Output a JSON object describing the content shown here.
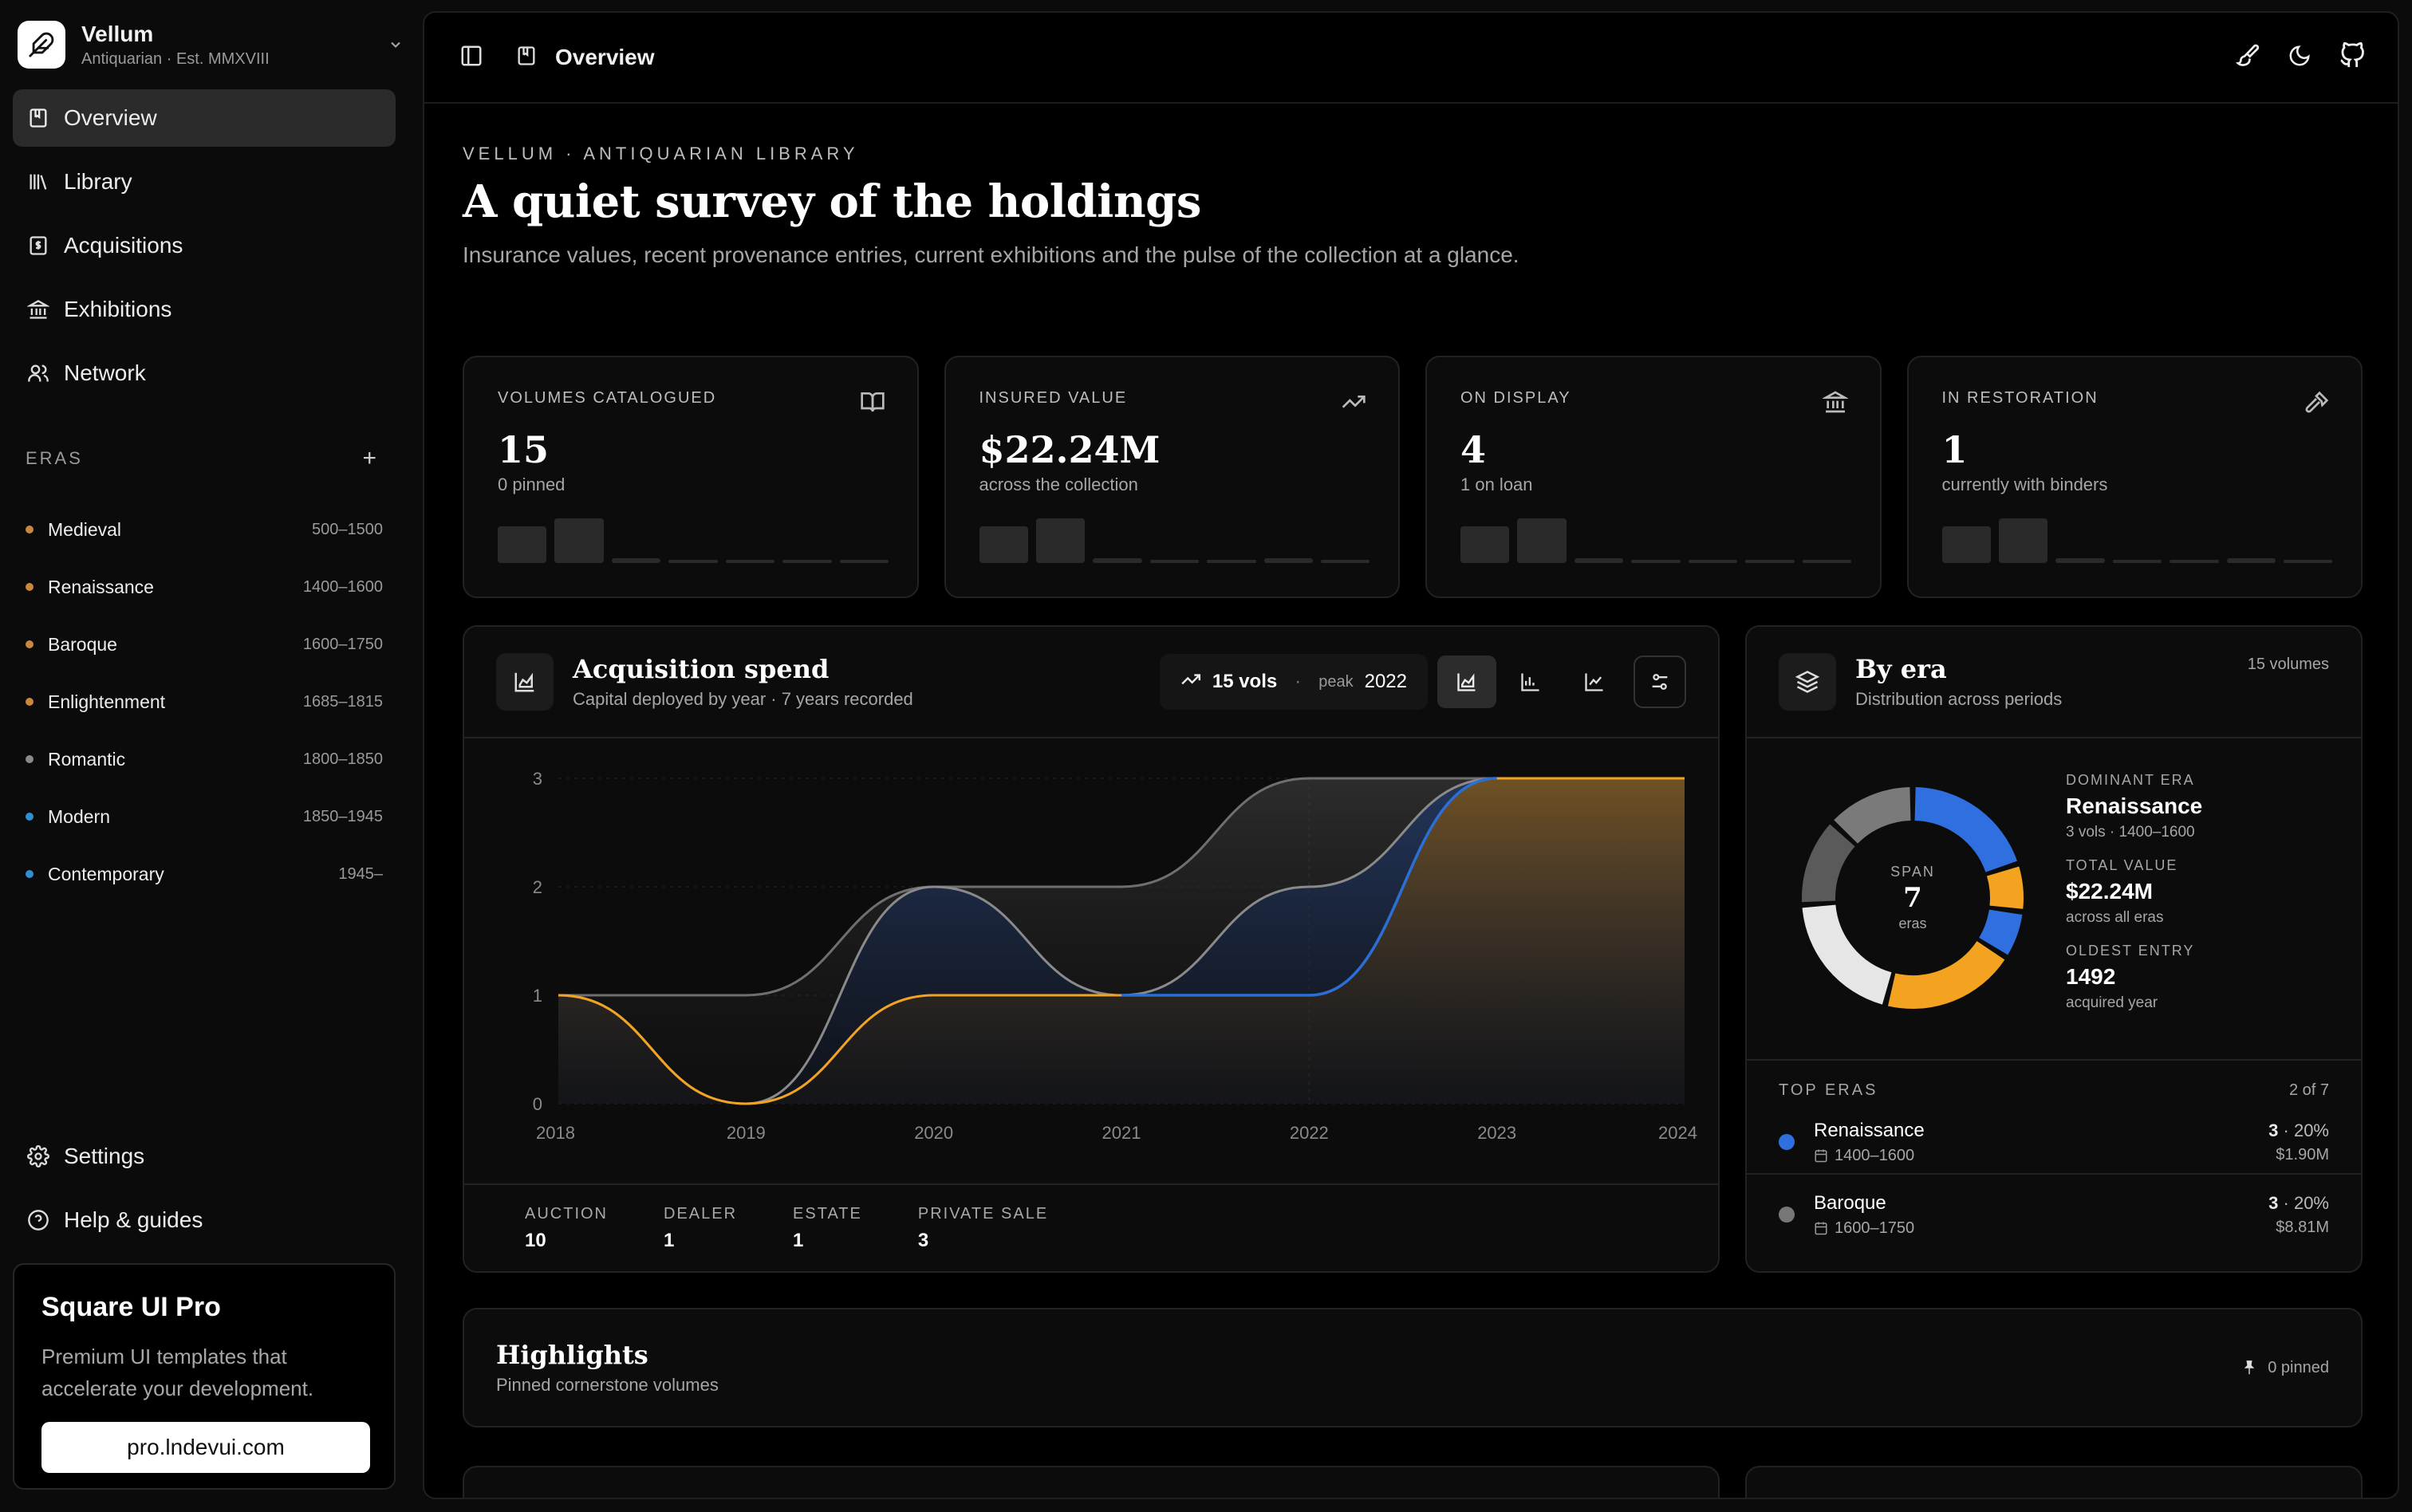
{
  "brand": {
    "name": "Vellum",
    "sub": "Antiquarian · Est. MMXVIII"
  },
  "nav": [
    {
      "label": "Overview",
      "icon": "book-icon",
      "active": true
    },
    {
      "label": "Library",
      "icon": "library-icon"
    },
    {
      "label": "Acquisitions",
      "icon": "receipt-icon"
    },
    {
      "label": "Exhibitions",
      "icon": "museum-icon"
    },
    {
      "label": "Network",
      "icon": "users-icon"
    }
  ],
  "eras": {
    "title": "ERAS",
    "items": [
      {
        "name": "Medieval",
        "range": "500–1500",
        "color": "#c8873d"
      },
      {
        "name": "Renaissance",
        "range": "1400–1600",
        "color": "#c8873d"
      },
      {
        "name": "Baroque",
        "range": "1600–1750",
        "color": "#c8873d"
      },
      {
        "name": "Enlightenment",
        "range": "1685–1815",
        "color": "#c8873d"
      },
      {
        "name": "Romantic",
        "range": "1800–1850",
        "color": "#8a8a8a"
      },
      {
        "name": "Modern",
        "range": "1850–1945",
        "color": "#2f8fd0"
      },
      {
        "name": "Contemporary",
        "range": "1945–",
        "color": "#2f8fd0"
      }
    ]
  },
  "footer_nav": [
    {
      "label": "Settings",
      "icon": "gear-icon"
    },
    {
      "label": "Help & guides",
      "icon": "help-icon"
    }
  ],
  "promo": {
    "title": "Square UI Pro",
    "text": "Premium UI templates that accelerate your development.",
    "button": "pro.lndevui.com"
  },
  "topbar": {
    "title": "Overview"
  },
  "header": {
    "eyebrow": "VELLUM · ANTIQUARIAN LIBRARY",
    "title": "A quiet survey of the holdings",
    "lead": "Insurance values, recent provenance entries, current exhibitions and the pulse of the collection at a glance."
  },
  "stats": [
    {
      "label": "VOLUMES CATALOGUED",
      "value": "15",
      "sub": "0 pinned",
      "icon": "open-book-icon"
    },
    {
      "label": "INSURED VALUE",
      "value": "$22.24M",
      "sub": "across the collection",
      "icon": "trending-up-icon"
    },
    {
      "label": "ON DISPLAY",
      "value": "4",
      "sub": "1 on loan",
      "icon": "museum-icon"
    },
    {
      "label": "IN RESTORATION",
      "value": "1",
      "sub": "currently with binders",
      "icon": "hammer-icon"
    }
  ],
  "acquisition": {
    "title": "Acquisition spend",
    "sub": "Capital deployed by year · 7 years recorded",
    "pill_vols": "15 vols",
    "pill_peak_label": "peak",
    "pill_peak_year": "2022",
    "sources": [
      {
        "label": "AUCTION",
        "value": "10"
      },
      {
        "label": "DEALER",
        "value": "1"
      },
      {
        "label": "ESTATE",
        "value": "1"
      },
      {
        "label": "PRIVATE SALE",
        "value": "3"
      }
    ]
  },
  "chart_data": {
    "type": "area",
    "x": [
      "2018",
      "2019",
      "2020",
      "2021",
      "2022",
      "2023",
      "2024"
    ],
    "series": [
      {
        "values": [
          1,
          0,
          2,
          1,
          2,
          3,
          3
        ],
        "color": "#8a8a8a"
      },
      {
        "values": [
          1,
          1,
          2,
          2,
          3,
          3,
          3
        ],
        "color": "#6f6f6f"
      },
      {
        "values": [
          1,
          0,
          1,
          1,
          1,
          3,
          3
        ],
        "color": "#f2a324"
      }
    ],
    "highlight": {
      "from": "2021",
      "to": "2023",
      "color": "#2b6fd6"
    },
    "yticks": [
      0,
      1,
      2,
      3
    ],
    "ylim": [
      0,
      3
    ],
    "grid": true
  },
  "byera": {
    "title": "By era",
    "sub": "Distribution across periods",
    "count": "15 volumes",
    "donut_center": {
      "label": "SPAN",
      "value": "7",
      "unit": "eras"
    },
    "donut_segments": [
      {
        "value": 20,
        "color": "#2f6fe0"
      },
      {
        "value": 7,
        "color": "#f3a31f"
      },
      {
        "value": 7,
        "color": "#2f6fe0"
      },
      {
        "value": 20,
        "color": "#f3a31f"
      },
      {
        "value": 20,
        "color": "#e6e6e6"
      },
      {
        "value": 13,
        "color": "#5a5a5a"
      },
      {
        "value": 13,
        "color": "#7a7a7a"
      }
    ],
    "facts": [
      {
        "label": "DOMINANT ERA",
        "value": "Renaissance",
        "sub": "3 vols · 1400–1600"
      },
      {
        "label": "TOTAL VALUE",
        "value": "$22.24M",
        "sub": "across all eras"
      },
      {
        "label": "OLDEST ENTRY",
        "value": "1492",
        "sub": "acquired year"
      }
    ],
    "top_title": "TOP ERAS",
    "top_count": "2 of 7",
    "top": [
      {
        "name": "Renaissance",
        "range": "1400–1600",
        "count": "3",
        "pct": "· 20%",
        "value": "$1.90M",
        "color": "#2f6fe0"
      },
      {
        "name": "Baroque",
        "range": "1600–1750",
        "count": "3",
        "pct": "· 20%",
        "value": "$8.81M",
        "color": "#777777"
      }
    ]
  },
  "highlights": {
    "title": "Highlights",
    "sub": "Pinned cornerstone volumes",
    "pinned": "0 pinned"
  }
}
